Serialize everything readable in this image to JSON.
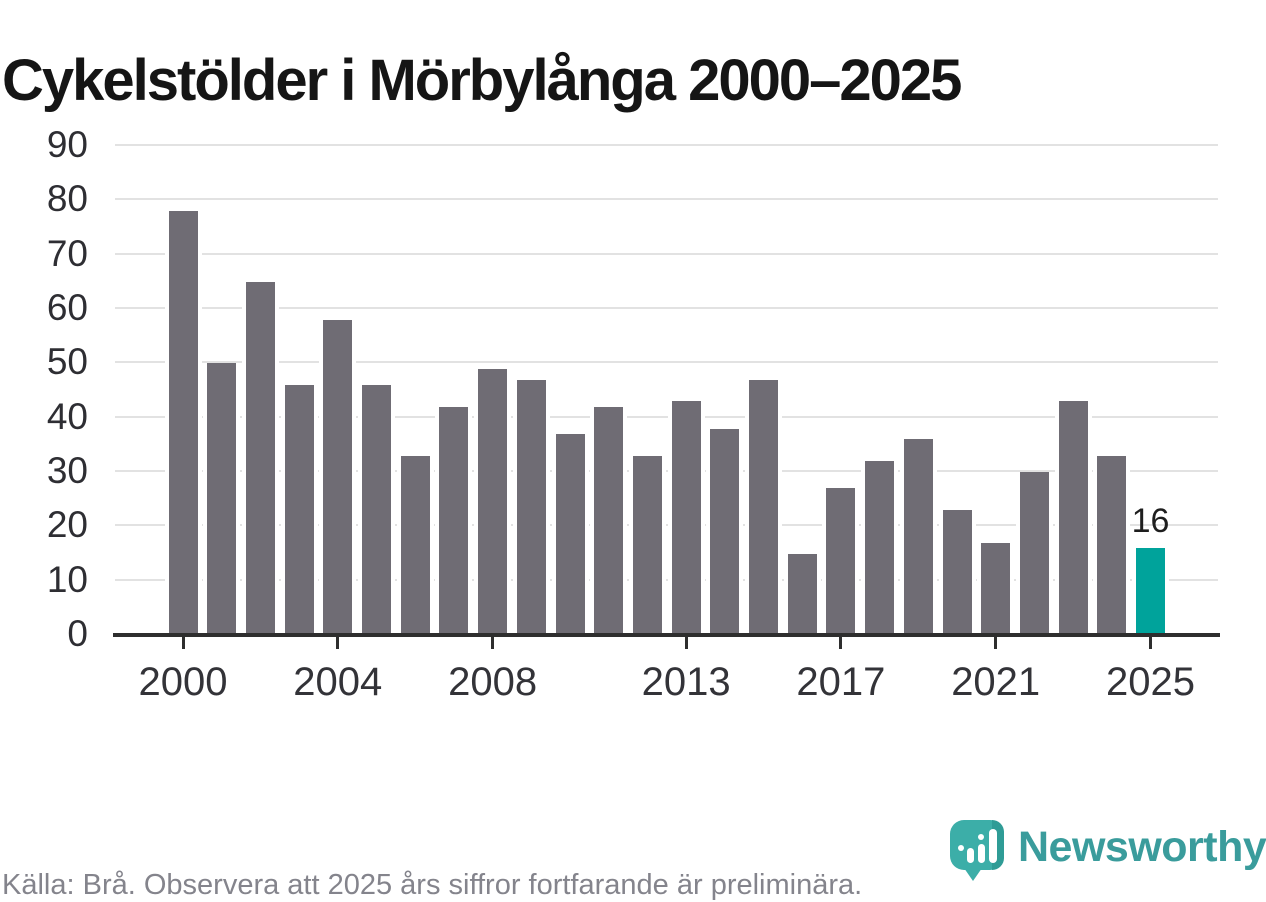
{
  "header": {
    "title": "Cykelstölder i Mörbylånga 2000–2025"
  },
  "chart_data": {
    "type": "bar",
    "title": "Cykelstölder i Mörbylånga 2000–2025",
    "categories": [
      "2000",
      "2001",
      "2002",
      "2003",
      "2004",
      "2005",
      "2006",
      "2007",
      "2008",
      "2009",
      "2010",
      "2011",
      "2012",
      "2013",
      "2014",
      "2015",
      "2016",
      "2017",
      "2018",
      "2019",
      "2020",
      "2021",
      "2022",
      "2023",
      "2024",
      "2025"
    ],
    "values": [
      78,
      50,
      65,
      46,
      58,
      46,
      33,
      42,
      49,
      47,
      37,
      42,
      33,
      43,
      38,
      47,
      15,
      27,
      32,
      36,
      23,
      17,
      30,
      43,
      33,
      16
    ],
    "highlight_category": "2025",
    "highlight_value_label": "16",
    "xlabel": "",
    "ylabel": "",
    "ylim": [
      0,
      90
    ],
    "yticks": [
      0,
      10,
      20,
      30,
      40,
      50,
      60,
      70,
      80,
      90
    ],
    "xtick_labels": [
      "2000",
      "2004",
      "2008",
      "2013",
      "2017",
      "2021",
      "2025"
    ],
    "grid": "horizontal",
    "legend": "none",
    "colors": {
      "bar": "#6F6C74",
      "highlight": "#00A39B",
      "gridline": "#E2E2E2",
      "axis": "#2E2E2E",
      "value_label": "#1E1E1E"
    }
  },
  "footer": {
    "source_note": "Källa: Brå. Observera att 2025 års siffror fortfarande är preliminära."
  },
  "branding": {
    "wordmark": "Newsworthy",
    "logo_icon": "newsworthy-speech-bubble-bar-chart-icon",
    "wordmark_color": "#3A9C9C",
    "logo_fill": "#3CAEA8",
    "logo_shade": "#2F9C96"
  }
}
